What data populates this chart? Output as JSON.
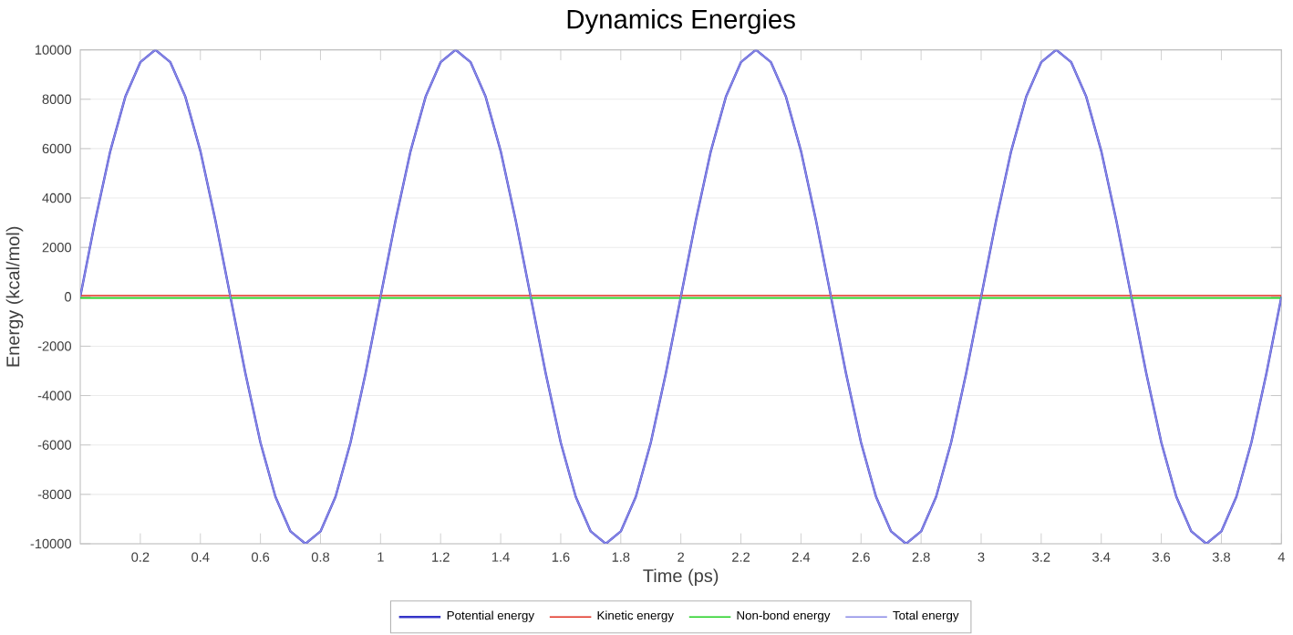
{
  "chart_data": {
    "type": "line",
    "title": "Dynamics Energies",
    "xlabel": "Time (ps)",
    "ylabel": "Energy (kcal/mol)",
    "xlim": [
      0,
      4
    ],
    "ylim": [
      -10000,
      10000
    ],
    "xticks": [
      0.2,
      0.4,
      0.6,
      0.8,
      1,
      1.2,
      1.4,
      1.6,
      1.8,
      2,
      2.2,
      2.4,
      2.6,
      2.8,
      3,
      3.2,
      3.4,
      3.6,
      3.8,
      4
    ],
    "yticks": [
      -10000,
      -8000,
      -6000,
      -4000,
      -2000,
      0,
      2000,
      4000,
      6000,
      8000,
      10000
    ],
    "grid": "y",
    "legend": "bottom",
    "series": [
      {
        "name": "Potential energy",
        "color": "#3535c8",
        "x": [
          0,
          0.05,
          0.1,
          0.15,
          0.2,
          0.25,
          0.3,
          0.35,
          0.4,
          0.45,
          0.5,
          0.55,
          0.6,
          0.65,
          0.7,
          0.75,
          0.8,
          0.85,
          0.9,
          0.95,
          1,
          1.05,
          1.1,
          1.15,
          1.2,
          1.25,
          1.3,
          1.35,
          1.4,
          1.45,
          1.5,
          1.55,
          1.6,
          1.65,
          1.7,
          1.75,
          1.8,
          1.85,
          1.9,
          1.95,
          2,
          2.05,
          2.1,
          2.15,
          2.2,
          2.25,
          2.3,
          2.35,
          2.4,
          2.45,
          2.5,
          2.55,
          2.6,
          2.65,
          2.7,
          2.75,
          2.8,
          2.85,
          2.9,
          2.95,
          3,
          3.05,
          3.1,
          3.15,
          3.2,
          3.25,
          3.3,
          3.35,
          3.4,
          3.45,
          3.5,
          3.55,
          3.6,
          3.65,
          3.7,
          3.75,
          3.8,
          3.85,
          3.9,
          3.95,
          4
        ],
        "values": [
          0,
          3100,
          5900,
          8100,
          9500,
          10000,
          9500,
          8100,
          5900,
          3100,
          0,
          -3100,
          -5900,
          -8100,
          -9500,
          -10000,
          -9500,
          -8100,
          -5900,
          -3100,
          0,
          3100,
          5900,
          8100,
          9500,
          10000,
          9500,
          8100,
          5900,
          3100,
          0,
          -3100,
          -5900,
          -8100,
          -9500,
          -10000,
          -9500,
          -8100,
          -5900,
          -3100,
          0,
          3100,
          5900,
          8100,
          9500,
          10000,
          9500,
          8100,
          5900,
          3100,
          0,
          -3100,
          -5900,
          -8100,
          -9500,
          -10000,
          -9500,
          -8100,
          -5900,
          -3100,
          0,
          3100,
          5900,
          8100,
          9500,
          10000,
          9500,
          8100,
          5900,
          3100,
          0,
          -3100,
          -5900,
          -8100,
          -9500,
          -10000,
          -9500,
          -8100,
          -5900,
          -3100,
          0
        ]
      },
      {
        "name": "Kinetic energy",
        "color": "#e03020",
        "x": [
          0,
          4
        ],
        "values": [
          50,
          50
        ]
      },
      {
        "name": "Non-bond energy",
        "color": "#20d020",
        "x": [
          0,
          4
        ],
        "values": [
          -50,
          -50
        ]
      },
      {
        "name": "Total energy",
        "color": "#8a8ae6",
        "x": [
          0,
          0.05,
          0.1,
          0.15,
          0.2,
          0.25,
          0.3,
          0.35,
          0.4,
          0.45,
          0.5,
          0.55,
          0.6,
          0.65,
          0.7,
          0.75,
          0.8,
          0.85,
          0.9,
          0.95,
          1,
          1.05,
          1.1,
          1.15,
          1.2,
          1.25,
          1.3,
          1.35,
          1.4,
          1.45,
          1.5,
          1.55,
          1.6,
          1.65,
          1.7,
          1.75,
          1.8,
          1.85,
          1.9,
          1.95,
          2,
          2.05,
          2.1,
          2.15,
          2.2,
          2.25,
          2.3,
          2.35,
          2.4,
          2.45,
          2.5,
          2.55,
          2.6,
          2.65,
          2.7,
          2.75,
          2.8,
          2.85,
          2.9,
          2.95,
          3,
          3.05,
          3.1,
          3.15,
          3.2,
          3.25,
          3.3,
          3.35,
          3.4,
          3.45,
          3.5,
          3.55,
          3.6,
          3.65,
          3.7,
          3.75,
          3.8,
          3.85,
          3.9,
          3.95,
          4
        ],
        "values": [
          0,
          3100,
          5900,
          8100,
          9500,
          10000,
          9500,
          8100,
          5900,
          3100,
          0,
          -3100,
          -5900,
          -8100,
          -9500,
          -10000,
          -9500,
          -8100,
          -5900,
          -3100,
          0,
          3100,
          5900,
          8100,
          9500,
          10000,
          9500,
          8100,
          5900,
          3100,
          0,
          -3100,
          -5900,
          -8100,
          -9500,
          -10000,
          -9500,
          -8100,
          -5900,
          -3100,
          0,
          3100,
          5900,
          8100,
          9500,
          10000,
          9500,
          8100,
          5900,
          3100,
          0,
          -3100,
          -5900,
          -8100,
          -9500,
          -10000,
          -9500,
          -8100,
          -5900,
          -3100,
          0,
          3100,
          5900,
          8100,
          9500,
          10000,
          9500,
          8100,
          5900,
          3100,
          0,
          -3100,
          -5900,
          -8100,
          -9500,
          -10000,
          -9500,
          -8100,
          -5900,
          -3100,
          0
        ]
      }
    ]
  }
}
